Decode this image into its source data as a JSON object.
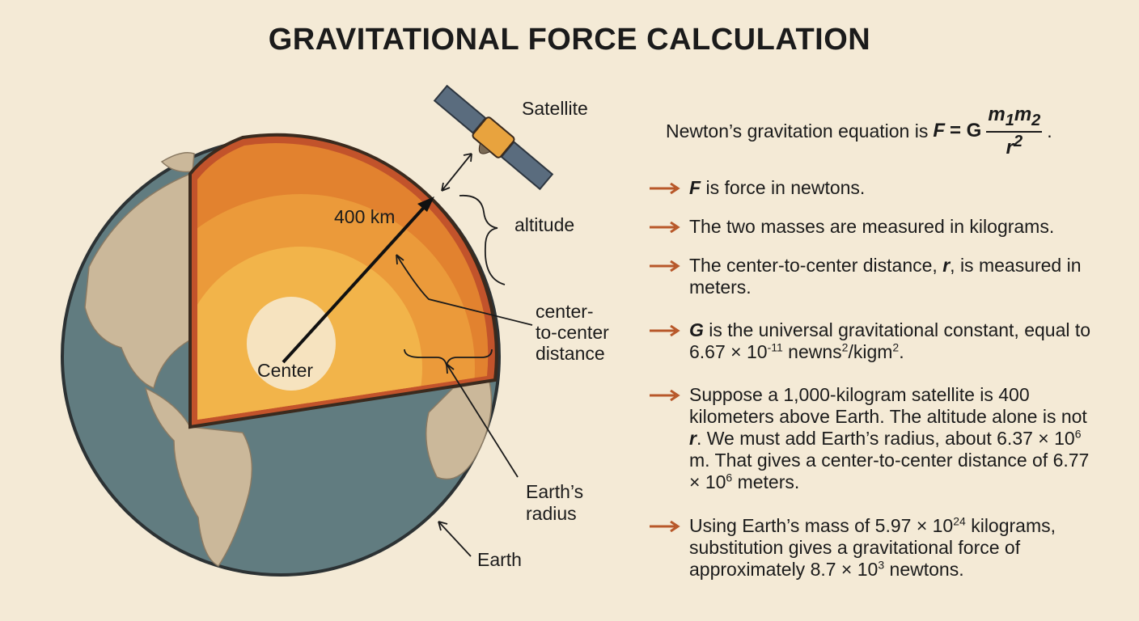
{
  "header": {
    "title": "GRAVITATIONAL FORCE CALCULATION"
  },
  "diagram": {
    "satellite": "Satellite",
    "altitude_value": "400 km",
    "altitude": "altitude",
    "center_distance": [
      "center-",
      "to-center",
      "distance"
    ],
    "center": "Center",
    "earth_radius": [
      "Earth’s",
      "radius"
    ],
    "earth": "Earth"
  },
  "equation": {
    "intro": "Newton’s gravitation equation is",
    "lhs": "F",
    "equals": "= G",
    "numerator": [
      "m",
      "1",
      "m",
      "2"
    ],
    "denominator": [
      "r",
      "2"
    ],
    "end": "."
  },
  "bullets": [
    [
      "F",
      " is force in newtons."
    ],
    [
      "The two masses are measured in kilograms."
    ],
    [
      "The center-to-center distance, ",
      "r",
      ", is measured in meters."
    ],
    [
      "G",
      " is the universal gravitational constant, equal to 6.67 × 10",
      "-11",
      " newns",
      "2",
      "/kigm",
      "2",
      "."
    ],
    [
      "Suppose a 1,000-kilogram satellite is 400 kilometers above Earth. The altitude alone is not ",
      "r",
      ". We must add Earth’s radius, about 6.37 × 10",
      "6",
      " m. That gives a center-to-center distance of 6.77 × 10",
      "6",
      " meters."
    ],
    [
      "Using Earth’s mass of 5.97 × 10",
      "24",
      " kilograms, substitution gives a gravitational force of approximately 8.7 × 10",
      "3",
      " newtons."
    ]
  ]
}
